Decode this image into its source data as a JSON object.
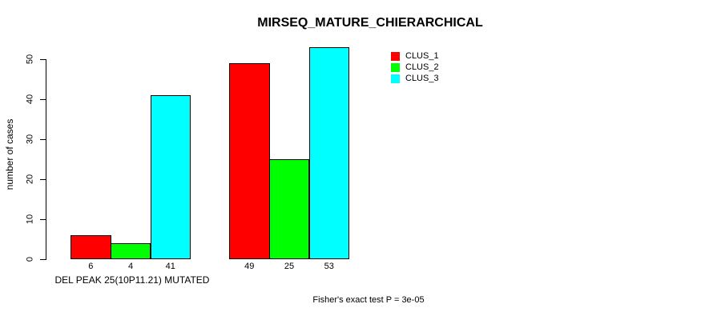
{
  "chart_data": {
    "type": "bar",
    "title": "MIRSEQ_MATURE_CHIERARCHICAL",
    "ylabel": "number of cases",
    "xlabel": "DEL PEAK 25(10P11.21) MUTATED",
    "annotation": "Fisher's exact test P = 3e-05",
    "yticks": [
      0,
      10,
      20,
      30,
      40,
      50
    ],
    "ylim": [
      0,
      50
    ],
    "grid": false,
    "legend_position": "top-right",
    "value_labels_shown": true,
    "groups": [
      {
        "bar_value_labels": [
          "6",
          "4",
          "41"
        ]
      },
      {
        "bar_value_labels": [
          "49",
          "25",
          "53"
        ]
      }
    ],
    "series": [
      {
        "name": "CLUS_1",
        "color": "#ff0000",
        "values": [
          6,
          49
        ]
      },
      {
        "name": "CLUS_2",
        "color": "#00ff00",
        "values": [
          4,
          25
        ]
      },
      {
        "name": "CLUS_3",
        "color": "#00ffff",
        "values": [
          41,
          53
        ]
      }
    ],
    "colors": {
      "background": "#ffffff",
      "axis": "#000000",
      "bar_border": "#000000",
      "text": "#000000"
    }
  }
}
